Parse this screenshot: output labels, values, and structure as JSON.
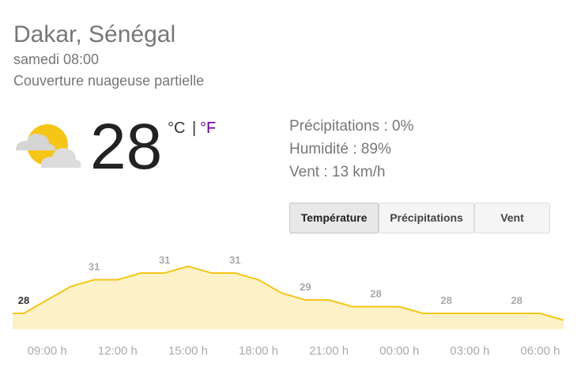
{
  "header": {
    "title": "Dakar, Sénégal",
    "time": "samedi 08:00",
    "condition": "Couverture nuageuse partielle"
  },
  "current": {
    "temperature": "28",
    "unit_c": "°C",
    "separator": "|",
    "unit_f": "°F"
  },
  "details": [
    "Précipitations : 0%",
    "Humidité : 89%",
    "Vent : 13 km/h"
  ],
  "tabs": [
    "Température",
    "Précipitations",
    "Vent"
  ],
  "chart_data": {
    "type": "area",
    "categories": [
      null,
      "09:00 h",
      null,
      null,
      "12:00 h",
      null,
      null,
      "15:00 h",
      null,
      null,
      "18:00 h",
      null,
      null,
      "21:00 h",
      null,
      null,
      "00:00 h",
      null,
      null,
      "03:00 h",
      null,
      null,
      "06:00 h",
      null
    ],
    "values": [
      28,
      29,
      30,
      30.5,
      30.5,
      31,
      31,
      31.5,
      31,
      31,
      30.5,
      29.5,
      29,
      29,
      28.5,
      28.5,
      28.5,
      28,
      28,
      28,
      28,
      28,
      28,
      27.5
    ],
    "value_labels": [
      "28",
      null,
      null,
      "31",
      null,
      null,
      "31",
      null,
      null,
      "31",
      null,
      null,
      "29",
      null,
      null,
      "28",
      null,
      null,
      "28",
      null,
      null,
      "28",
      null,
      null
    ],
    "color": "#f5c518",
    "fill": "#fdf2c7",
    "ylim": [
      27,
      32
    ]
  }
}
